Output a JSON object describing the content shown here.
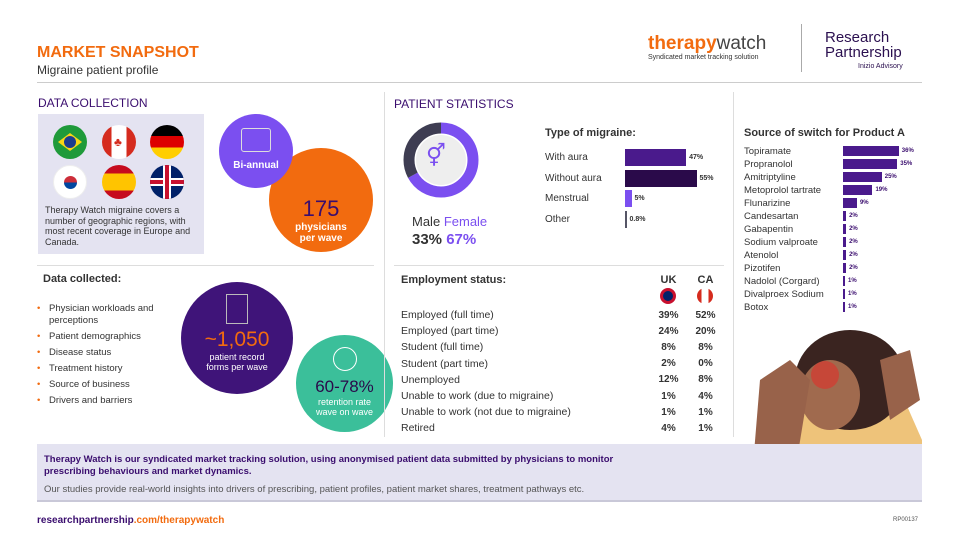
{
  "header": {
    "title": "MARKET SNAPSHOT",
    "subtitle": "Migraine patient profile",
    "brand_bold": "therapy",
    "brand_light": "watch",
    "brand_tagline": "Syndicated market tracking solution",
    "company_line1": "Research",
    "company_line2": "Partnership",
    "company_sub": "Inizio Advisory"
  },
  "data_collection": {
    "heading": "DATA COLLECTION",
    "flags": [
      "brazil-flag",
      "canada-flag",
      "germany-flag",
      "south-korea-flag",
      "spain-flag",
      "uk-flag"
    ],
    "coverage_text": "Therapy Watch migraine covers a number of geographic regions, with most recent coverage in Europe and Canada.",
    "frequency": "Bi-annual",
    "physicians_value": "175",
    "physicians_label": "physicians per wave",
    "collected_heading": "Data collected:",
    "collected_items": [
      "Physician workloads and perceptions",
      "Patient demographics",
      "Disease status",
      "Treatment history",
      "Source of business",
      "Drivers and barriers"
    ],
    "records_value": "~1,050",
    "records_label": "patient record forms per wave",
    "retention_value": "60-78%",
    "retention_label": "retention rate wave on wave"
  },
  "patient_stats": {
    "heading": "PATIENT STATISTICS",
    "male_label": "Male",
    "female_label": "Female",
    "male_pct": "33%",
    "female_pct": "67%",
    "male_value": 33,
    "female_value": 67,
    "migraine_title": "Type of migraine:",
    "migraine": [
      {
        "label": "With aura",
        "value": 47,
        "text": "47%",
        "color": "#4a1a8c"
      },
      {
        "label": "Without aura",
        "value": 55,
        "text": "55%",
        "color": "#2a0a4a"
      },
      {
        "label": "Menstrual",
        "value": 5,
        "text": "5%",
        "color": "#7b4ff0"
      },
      {
        "label": "Other",
        "value": 0.8,
        "text": "0.8%",
        "color": "#555566"
      }
    ],
    "employment_title": "Employment status:",
    "countries": [
      "UK",
      "CA"
    ],
    "employment": [
      [
        "Employed (full time)",
        "39%",
        "52%"
      ],
      [
        "Employed (part time)",
        "24%",
        "20%"
      ],
      [
        "Student (full time)",
        "8%",
        "8%"
      ],
      [
        "Student (part time)",
        "2%",
        "0%"
      ],
      [
        "Unemployed",
        "12%",
        "8%"
      ],
      [
        "Unable to work (due to migraine)",
        "1%",
        "4%"
      ],
      [
        "Unable to work (not due to migraine)",
        "1%",
        "1%"
      ],
      [
        "Retired",
        "4%",
        "1%"
      ]
    ]
  },
  "switch": {
    "title": "Source of switch for Product A",
    "color": "#4a1a8c",
    "items": [
      {
        "label": "Topiramate",
        "value": 36,
        "text": "36%"
      },
      {
        "label": "Propranolol",
        "value": 35,
        "text": "35%"
      },
      {
        "label": "Amitriptyline",
        "value": 25,
        "text": "25%"
      },
      {
        "label": "Metoprolol tartrate",
        "value": 19,
        "text": "19%"
      },
      {
        "label": "Flunarizine",
        "value": 9,
        "text": "9%"
      },
      {
        "label": "Candesartan",
        "value": 2,
        "text": "2%"
      },
      {
        "label": "Gabapentin",
        "value": 2,
        "text": "2%"
      },
      {
        "label": "Sodium valproate",
        "value": 2,
        "text": "2%"
      },
      {
        "label": "Atenolol",
        "value": 2,
        "text": "2%"
      },
      {
        "label": "Pizotifen",
        "value": 2,
        "text": "2%"
      },
      {
        "label": "Nadolol (Corgard)",
        "value": 1,
        "text": "1%"
      },
      {
        "label": "Divalproex Sodium",
        "value": 1,
        "text": "1%"
      },
      {
        "label": "Botox",
        "value": 1,
        "text": "1%"
      }
    ]
  },
  "footer": {
    "bold_text": "Therapy Watch is our syndicated market tracking solution, using anonymised patient data submitted by physicians to monitor prescribing behaviours and market dynamics.",
    "text": "Our studies provide real-world insights into drivers of prescribing, patient profiles, patient market shares, treatment pathways etc.",
    "url_main": "researchpartnership",
    "url_rest": ".com/therapywatch",
    "code": "RP00137"
  }
}
